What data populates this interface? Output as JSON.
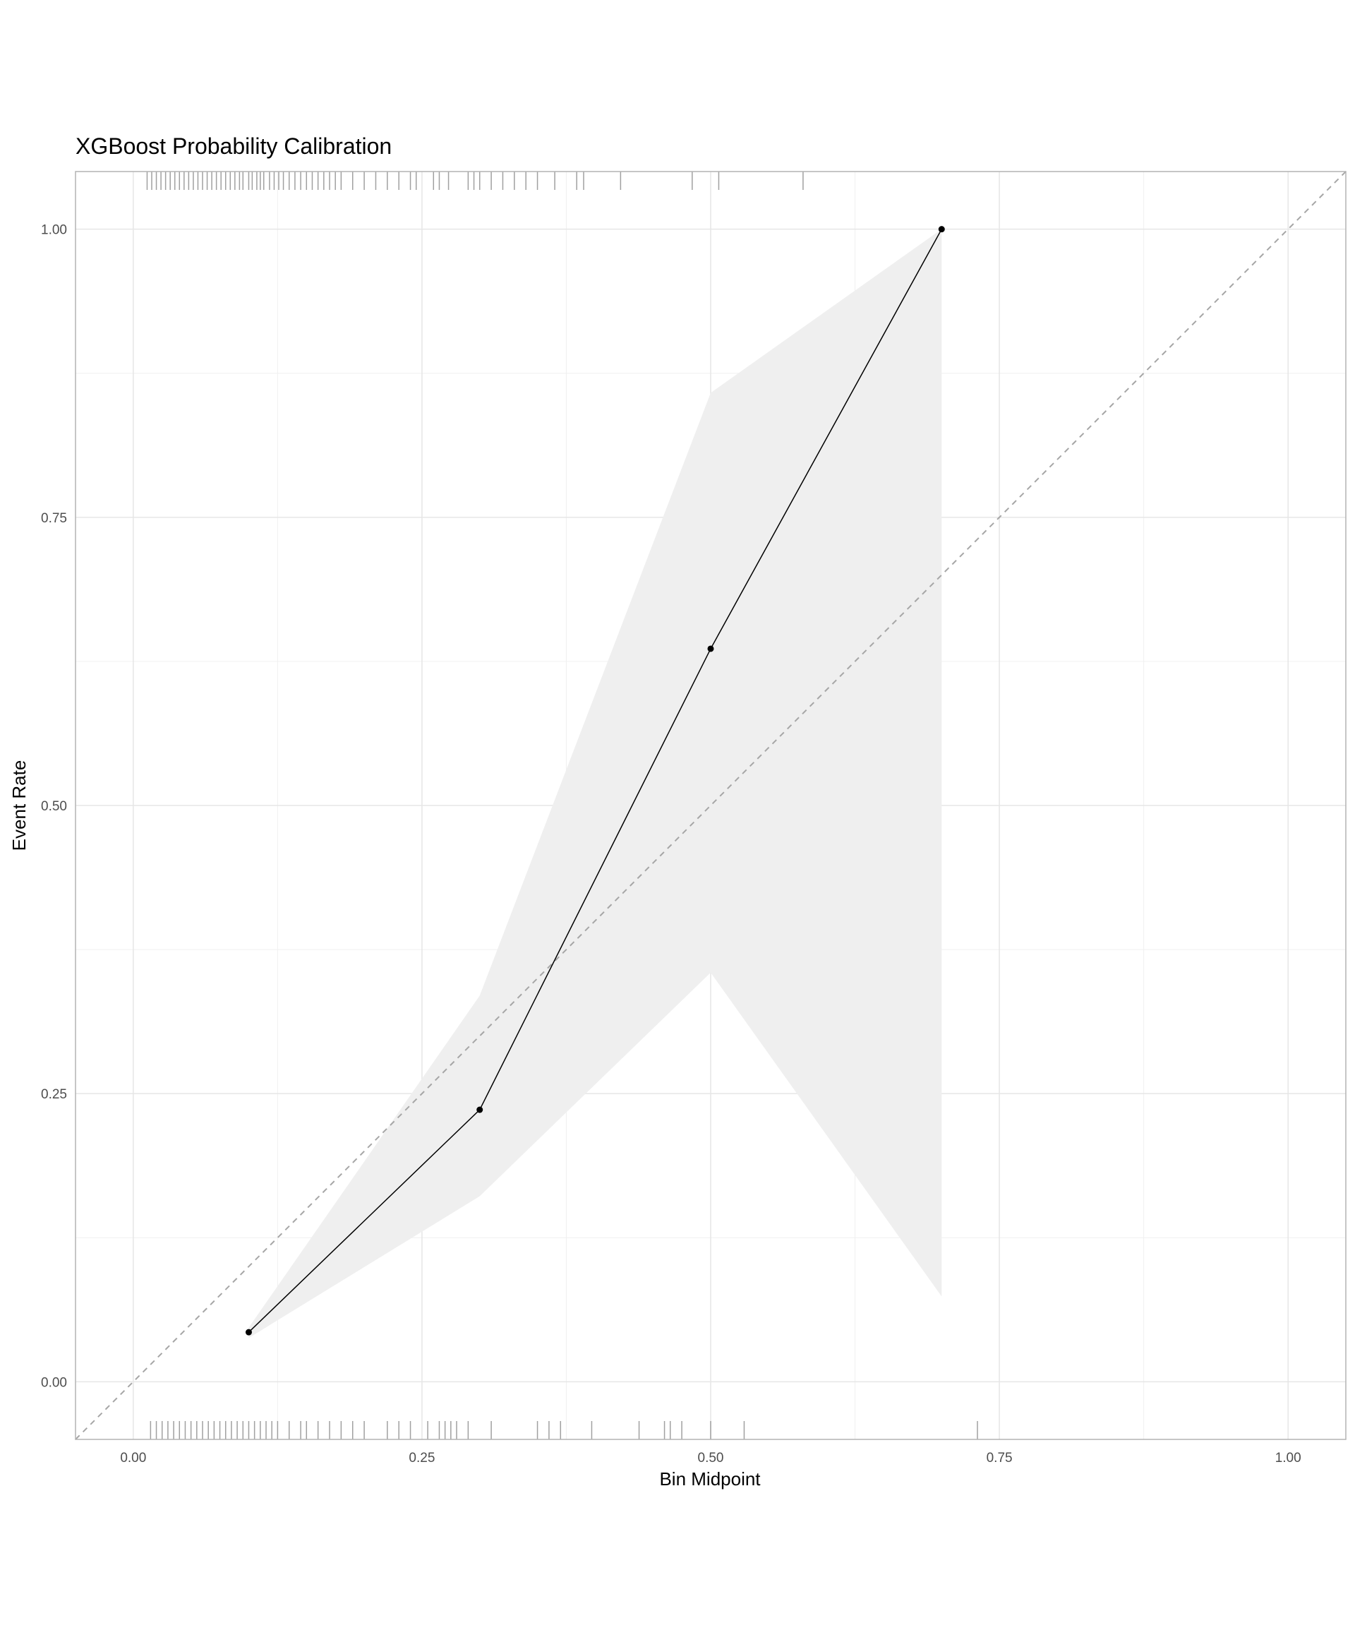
{
  "chart_data": {
    "type": "line",
    "title": "XGBoost Probability Calibration",
    "xlabel": "Bin Midpoint",
    "ylabel": "Event Rate",
    "x": [
      0.1,
      0.3,
      0.5,
      0.7
    ],
    "values": [
      0.043,
      0.236,
      0.636,
      1.0
    ],
    "lower": [
      0.038,
      0.161,
      0.355,
      0.074
    ],
    "upper": [
      0.047,
      0.335,
      0.858,
      1.0
    ],
    "color": "#000000",
    "band_color": "#efefef",
    "rug_color": "#a0a0a0",
    "rug_top": [
      0.012,
      0.016,
      0.02,
      0.024,
      0.028,
      0.032,
      0.036,
      0.04,
      0.044,
      0.048,
      0.052,
      0.056,
      0.06,
      0.064,
      0.068,
      0.072,
      0.076,
      0.08,
      0.084,
      0.088,
      0.092,
      0.095,
      0.1,
      0.103,
      0.107,
      0.11,
      0.113,
      0.118,
      0.122,
      0.126,
      0.13,
      0.135,
      0.14,
      0.145,
      0.15,
      0.155,
      0.16,
      0.165,
      0.17,
      0.175,
      0.18,
      0.19,
      0.2,
      0.21,
      0.22,
      0.23,
      0.24,
      0.245,
      0.26,
      0.265,
      0.273,
      0.29,
      0.295,
      0.3,
      0.31,
      0.32,
      0.33,
      0.34,
      0.35,
      0.365,
      0.384,
      0.39,
      0.422,
      0.484,
      0.507,
      0.58
    ],
    "rug_bottom": [
      0.015,
      0.02,
      0.025,
      0.03,
      0.035,
      0.04,
      0.045,
      0.05,
      0.055,
      0.06,
      0.065,
      0.07,
      0.075,
      0.08,
      0.085,
      0.09,
      0.095,
      0.1,
      0.105,
      0.11,
      0.115,
      0.12,
      0.125,
      0.135,
      0.145,
      0.15,
      0.16,
      0.17,
      0.18,
      0.19,
      0.2,
      0.22,
      0.23,
      0.24,
      0.255,
      0.265,
      0.27,
      0.275,
      0.28,
      0.29,
      0.31,
      0.35,
      0.36,
      0.37,
      0.397,
      0.438,
      0.46,
      0.465,
      0.475,
      0.5,
      0.529,
      0.731
    ],
    "xlim": [
      -0.05,
      1.05
    ],
    "ylim": [
      -0.05,
      1.05
    ],
    "xticks": [
      {
        "value": 0,
        "label": "0.00"
      },
      {
        "value": 0.25,
        "label": "0.25"
      },
      {
        "value": 0.5,
        "label": "0.50"
      },
      {
        "value": 0.75,
        "label": "0.75"
      },
      {
        "value": 1,
        "label": "1.00"
      }
    ],
    "yticks": [
      {
        "value": 0,
        "label": "0.00"
      },
      {
        "value": 0.25,
        "label": "0.25"
      },
      {
        "value": 0.5,
        "label": "0.50"
      },
      {
        "value": 0.75,
        "label": "0.75"
      },
      {
        "value": 1,
        "label": "1.00"
      }
    ],
    "xminorticks": [
      0.125,
      0.375,
      0.625,
      0.875
    ],
    "yminorticks": [
      0.125,
      0.375,
      0.625,
      0.875
    ],
    "grid": true
  }
}
